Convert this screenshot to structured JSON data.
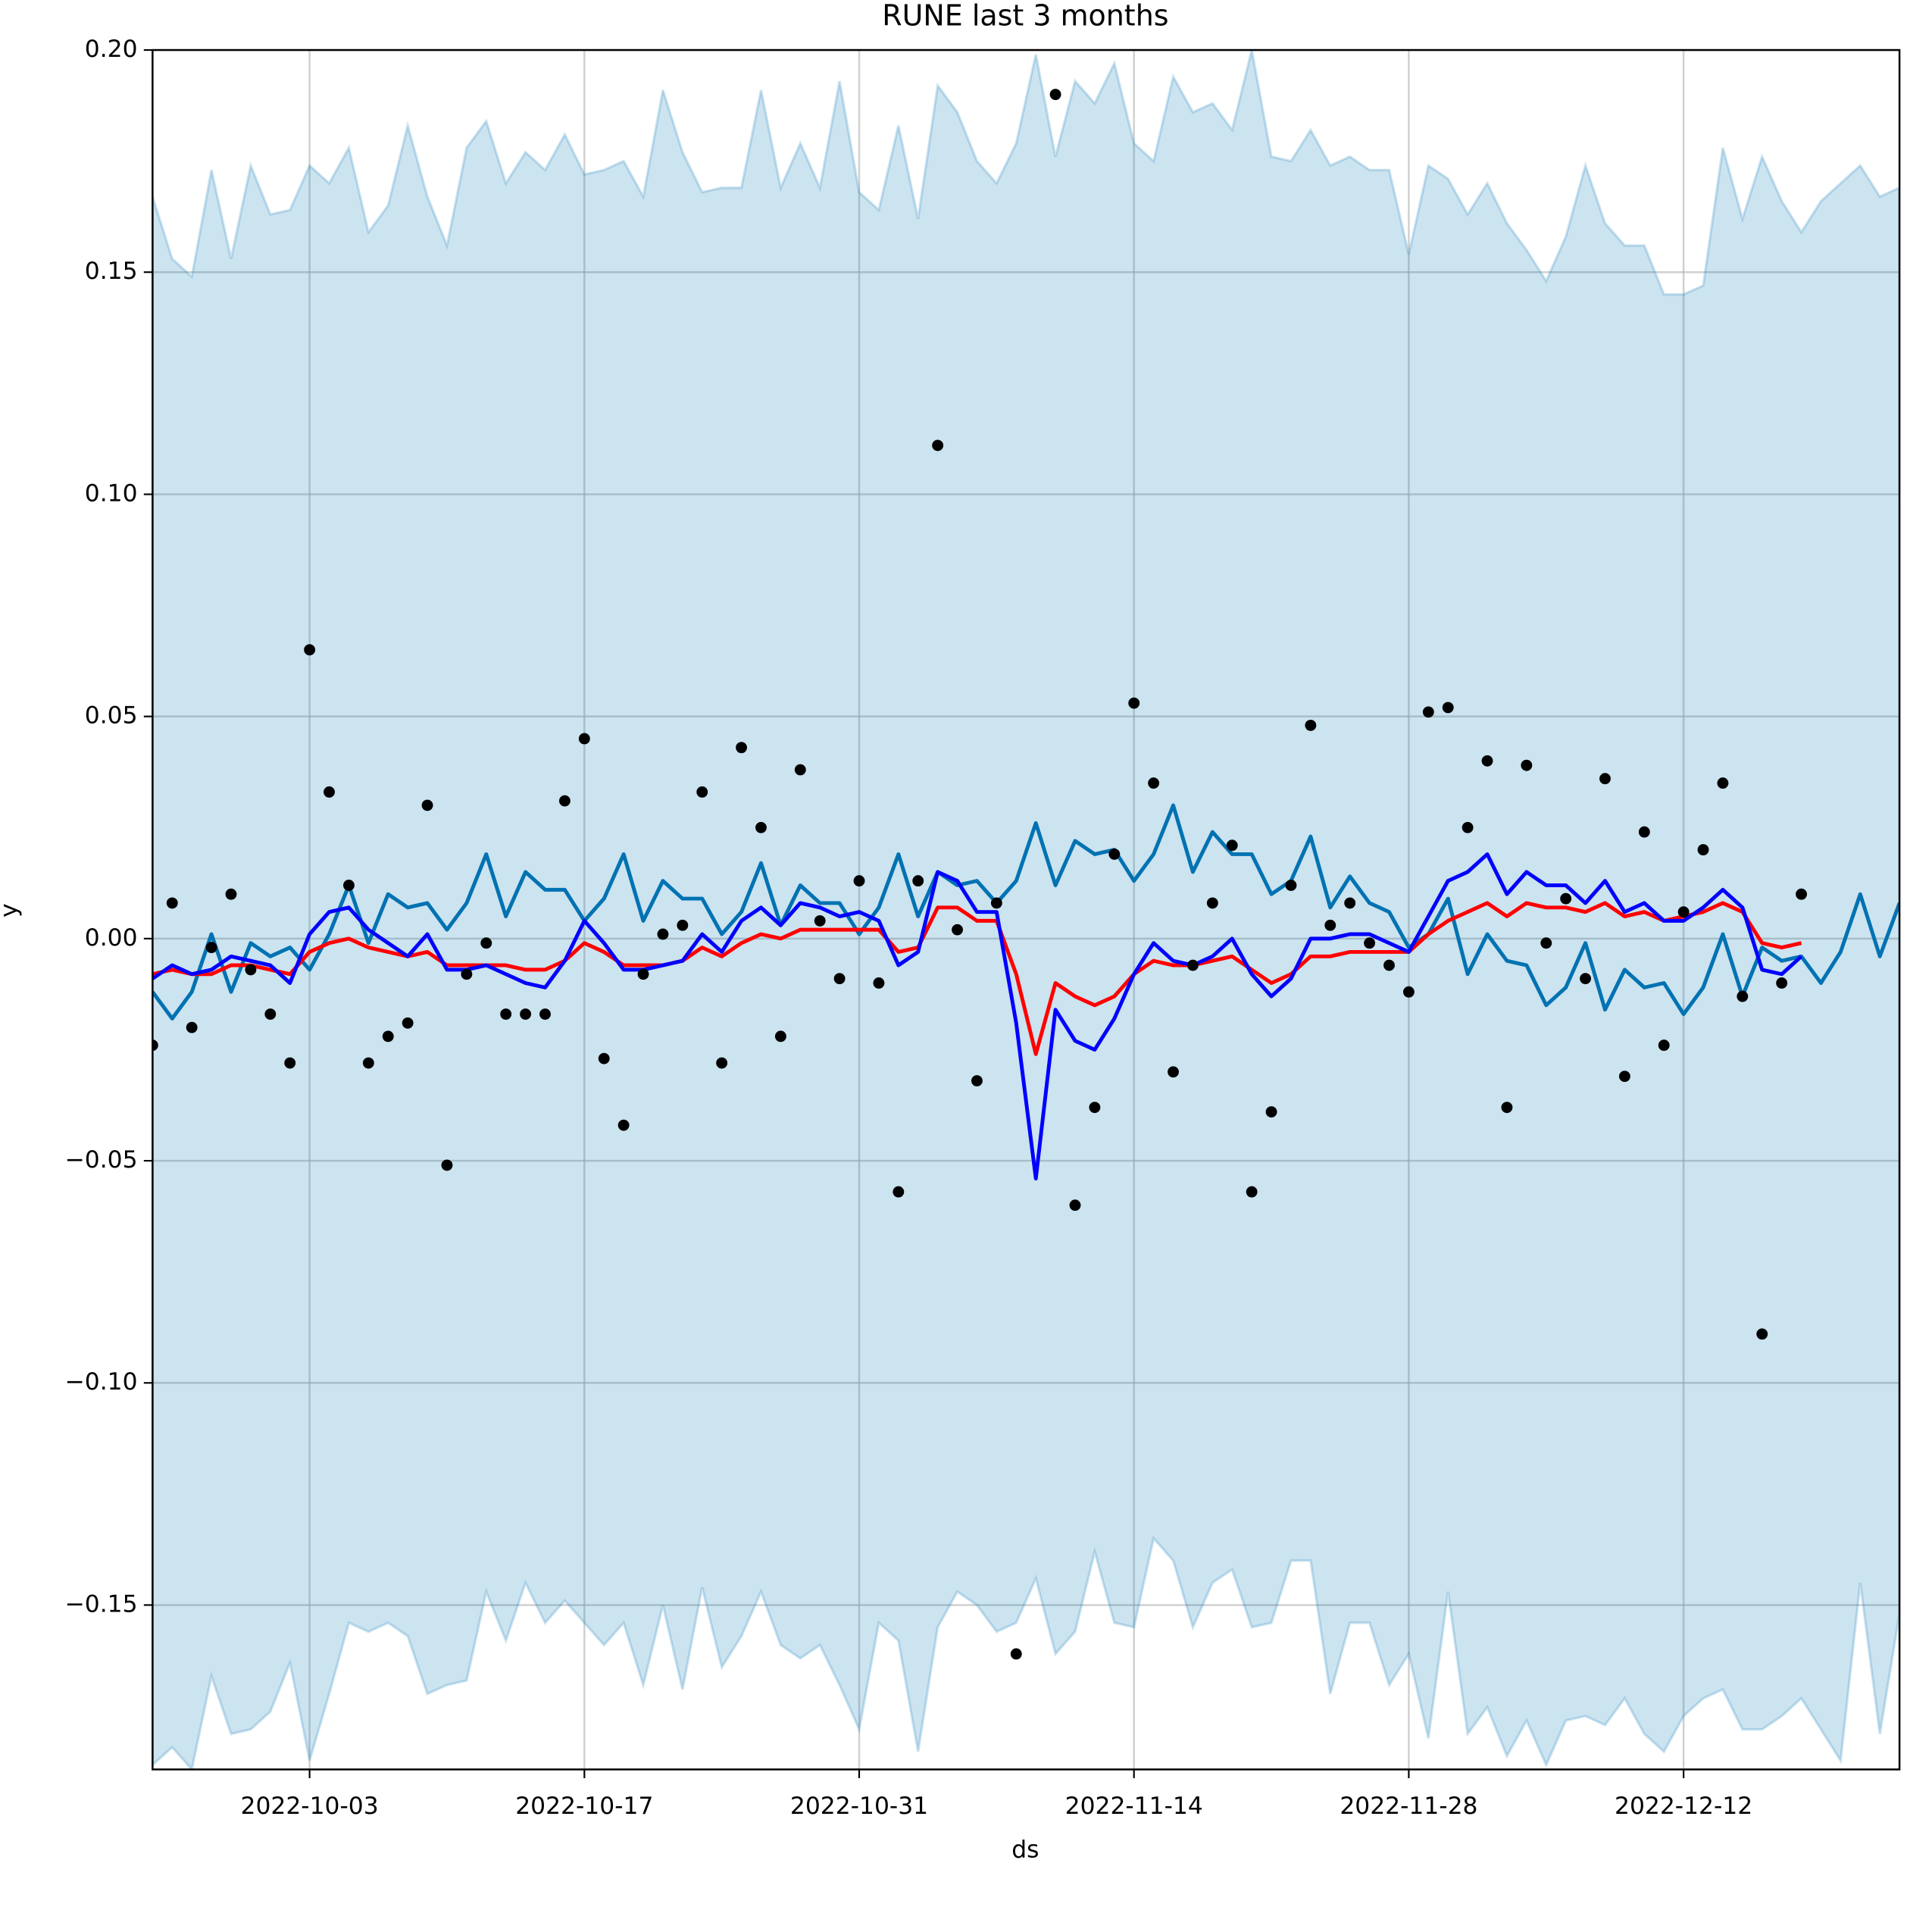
{
  "chart_data": {
    "type": "line",
    "title": "RUNE last 3 months",
    "x_label": "ds",
    "y_label": "y",
    "x": [
      "2022-09-25",
      "2022-09-26",
      "2022-09-27",
      "2022-09-28",
      "2022-09-29",
      "2022-09-30",
      "2022-10-01",
      "2022-10-02",
      "2022-10-03",
      "2022-10-04",
      "2022-10-05",
      "2022-10-06",
      "2022-10-07",
      "2022-10-08",
      "2022-10-09",
      "2022-10-10",
      "2022-10-11",
      "2022-10-12",
      "2022-10-13",
      "2022-10-14",
      "2022-10-15",
      "2022-10-16",
      "2022-10-17",
      "2022-10-18",
      "2022-10-19",
      "2022-10-20",
      "2022-10-21",
      "2022-10-22",
      "2022-10-23",
      "2022-10-24",
      "2022-10-25",
      "2022-10-26",
      "2022-10-27",
      "2022-10-28",
      "2022-10-29",
      "2022-10-30",
      "2022-10-31",
      "2022-11-01",
      "2022-11-02",
      "2022-11-03",
      "2022-11-04",
      "2022-11-05",
      "2022-11-06",
      "2022-11-07",
      "2022-11-08",
      "2022-11-09",
      "2022-11-10",
      "2022-11-11",
      "2022-11-12",
      "2022-11-13",
      "2022-11-14",
      "2022-11-15",
      "2022-11-16",
      "2022-11-17",
      "2022-11-18",
      "2022-11-19",
      "2022-11-20",
      "2022-11-21",
      "2022-11-22",
      "2022-11-23",
      "2022-11-24",
      "2022-11-25",
      "2022-11-26",
      "2022-11-27",
      "2022-11-28",
      "2022-11-29",
      "2022-11-30",
      "2022-12-01",
      "2022-12-02",
      "2022-12-03",
      "2022-12-04",
      "2022-12-05",
      "2022-12-06",
      "2022-12-07",
      "2022-12-08",
      "2022-12-09",
      "2022-12-10",
      "2022-12-11",
      "2022-12-12",
      "2022-12-13",
      "2022-12-14",
      "2022-12-15",
      "2022-12-16",
      "2022-12-17",
      "2022-12-18",
      "2022-12-19",
      "2022-12-20",
      "2022-12-21",
      "2022-12-22",
      "2022-12-23"
    ],
    "xlim": [
      "2022-09-25",
      "2022-12-23"
    ],
    "xticks": [
      "2022-10-03",
      "2022-10-17",
      "2022-10-31",
      "2022-11-14",
      "2022-11-28",
      "2022-12-12"
    ],
    "ylim": [
      -0.187,
      0.2
    ],
    "yticks": [
      {
        "value": -0.15,
        "label": "−0.15"
      },
      {
        "value": -0.1,
        "label": "−0.10"
      },
      {
        "value": -0.05,
        "label": "−0.05"
      },
      {
        "value": 0,
        "label": "0.00"
      },
      0.05,
      {
        "value": 0.1,
        "label": "0.10"
      },
      0.15,
      {
        "value": 0.2,
        "label": "0.20"
      }
    ],
    "grid": true,
    "series": [
      {
        "style": "band",
        "color": "#0072B2",
        "upper": [
          0.167,
          0.153,
          0.149,
          0.173,
          0.153,
          0.174,
          0.163,
          0.164,
          0.174,
          0.17,
          0.178,
          0.159,
          0.165,
          0.183,
          0.167,
          0.156,
          0.178,
          0.184,
          0.17,
          0.177,
          0.173,
          0.181,
          0.172,
          0.173,
          0.175,
          0.167,
          0.191,
          0.177,
          0.168,
          0.169,
          0.169,
          0.191,
          0.169,
          0.179,
          0.169,
          0.193,
          0.168,
          0.164,
          0.183,
          0.162,
          0.192,
          0.186,
          0.175,
          0.17,
          0.179,
          0.199,
          0.176,
          0.193,
          0.188,
          0.197,
          0.179,
          0.175,
          0.194,
          0.186,
          0.188,
          0.182,
          0.2,
          0.176,
          0.175,
          0.182,
          0.174,
          0.176,
          0.173,
          0.173,
          0.154,
          0.174,
          0.171,
          0.163,
          0.17,
          0.161,
          0.155,
          0.148,
          0.158,
          0.174,
          0.161,
          0.156,
          0.156,
          0.145,
          0.145,
          0.147,
          0.178,
          0.162,
          0.176,
          0.166,
          0.159,
          0.166,
          0.17,
          0.174,
          0.167,
          0.169
        ],
        "lower": [
          -0.186,
          -0.182,
          -0.187,
          -0.166,
          -0.179,
          -0.178,
          -0.174,
          -0.163,
          -0.185,
          -0.17,
          -0.154,
          -0.156,
          -0.154,
          -0.157,
          -0.17,
          -0.168,
          -0.167,
          -0.147,
          -0.158,
          -0.145,
          -0.154,
          -0.149,
          -0.154,
          -0.159,
          -0.154,
          -0.168,
          -0.15,
          -0.169,
          -0.146,
          -0.164,
          -0.157,
          -0.147,
          -0.159,
          -0.162,
          -0.159,
          -0.168,
          -0.178,
          -0.154,
          -0.158,
          -0.183,
          -0.155,
          -0.147,
          -0.15,
          -0.156,
          -0.154,
          -0.144,
          -0.161,
          -0.156,
          -0.138,
          -0.154,
          -0.155,
          -0.135,
          -0.14,
          -0.155,
          -0.145,
          -0.142,
          -0.155,
          -0.154,
          -0.14,
          -0.14,
          -0.17,
          -0.154,
          -0.154,
          -0.168,
          -0.161,
          -0.18,
          -0.147,
          -0.179,
          -0.173,
          -0.184,
          -0.176,
          -0.186,
          -0.176,
          -0.175,
          -0.177,
          -0.171,
          -0.179,
          -0.183,
          -0.175,
          -0.171,
          -0.169,
          -0.178,
          -0.178,
          -0.175,
          -0.171,
          -0.178,
          -0.185,
          -0.145,
          -0.179,
          -0.152
        ]
      },
      {
        "style": "line",
        "color": "#0072B2",
        "values": [
          -0.012,
          -0.018,
          -0.012,
          0.001,
          -0.012,
          -0.001,
          -0.004,
          -0.002,
          -0.007,
          0.001,
          0.012,
          -0.001,
          0.01,
          0.007,
          0.008,
          0.002,
          0.008,
          0.019,
          0.005,
          0.015,
          0.011,
          0.011,
          0.004,
          0.009,
          0.019,
          0.004,
          0.013,
          0.009,
          0.009,
          0.001,
          0.006,
          0.017,
          0.003,
          0.012,
          0.008,
          0.008,
          0.001,
          0.007,
          0.019,
          0.005,
          0.015,
          0.012,
          0.013,
          0.008,
          0.013,
          0.026,
          0.012,
          0.022,
          0.019,
          0.02,
          0.013,
          0.019,
          0.03,
          0.015,
          0.024,
          0.019,
          0.019,
          0.01,
          0.013,
          0.023,
          0.007,
          0.014,
          0.008,
          0.006,
          -0.002,
          0.001,
          0.009,
          -0.008,
          0.001,
          -0.005,
          -0.006,
          -0.015,
          -0.011,
          -0.001,
          -0.016,
          -0.007,
          -0.011,
          -0.01,
          -0.017,
          -0.011,
          0.001,
          -0.013,
          -0.002,
          -0.005,
          -0.004,
          -0.01,
          -0.003,
          0.01,
          -0.004,
          0.008
        ]
      },
      {
        "style": "line",
        "color": "#ff0000",
        "values": [
          -0.008,
          -0.007,
          -0.008,
          -0.008,
          -0.006,
          -0.006,
          -0.007,
          -0.008,
          -0.003,
          -0.001,
          0,
          -0.002,
          -0.003,
          -0.004,
          -0.003,
          -0.006,
          -0.006,
          -0.006,
          -0.006,
          -0.007,
          -0.007,
          -0.005,
          -0.001,
          -0.003,
          -0.006,
          -0.006,
          -0.006,
          -0.005,
          -0.002,
          -0.004,
          -0.001,
          0.001,
          0,
          0.002,
          0.002,
          0.002,
          0.002,
          0.002,
          -0.003,
          -0.002,
          0.007,
          0.007,
          0.004,
          0.004,
          -0.008,
          -0.026,
          -0.01,
          -0.013,
          -0.015,
          -0.013,
          -0.008,
          -0.005,
          -0.006,
          -0.006,
          -0.005,
          -0.004,
          -0.007,
          -0.01,
          -0.008,
          -0.004,
          -0.004,
          -0.003,
          -0.003,
          -0.003,
          -0.003,
          0.001,
          0.004,
          0.006,
          0.008,
          0.005,
          0.008,
          0.007,
          0.007,
          0.006,
          0.008,
          0.005,
          0.006,
          0.004,
          0.005,
          0.006,
          0.008,
          0.006,
          -0.001,
          -0.002,
          -0.001,
          null,
          null,
          null,
          null,
          null
        ]
      },
      {
        "style": "line",
        "color": "#0000ff",
        "values": [
          -0.009,
          -0.006,
          -0.008,
          -0.007,
          -0.004,
          -0.005,
          -0.006,
          -0.01,
          0.001,
          0.006,
          0.007,
          0.002,
          -0.001,
          -0.004,
          0.001,
          -0.007,
          -0.007,
          -0.006,
          -0.008,
          -0.01,
          -0.011,
          -0.005,
          0.004,
          -0.001,
          -0.007,
          -0.007,
          -0.006,
          -0.005,
          0.001,
          -0.003,
          0.004,
          0.007,
          0.003,
          0.008,
          0.007,
          0.005,
          0.006,
          0.004,
          -0.006,
          -0.003,
          0.015,
          0.013,
          0.006,
          0.006,
          -0.019,
          -0.054,
          -0.016,
          -0.023,
          -0.025,
          -0.018,
          -0.008,
          -0.001,
          -0.005,
          -0.006,
          -0.004,
          0,
          -0.008,
          -0.013,
          -0.009,
          0,
          0,
          0.001,
          0.001,
          -0.001,
          -0.003,
          0.005,
          0.013,
          0.015,
          0.019,
          0.01,
          0.015,
          0.012,
          0.012,
          0.008,
          0.013,
          0.006,
          0.008,
          0.004,
          0.004,
          0.007,
          0.011,
          0.007,
          -0.007,
          -0.008,
          -0.004,
          null,
          null,
          null,
          null,
          null
        ]
      },
      {
        "style": "scatter",
        "color": "#000000",
        "values": [
          -0.024,
          0.008,
          -0.02,
          -0.002,
          0.01,
          -0.007,
          -0.017,
          -0.028,
          0.065,
          0.033,
          0.012,
          -0.028,
          -0.022,
          -0.019,
          0.03,
          -0.051,
          -0.008,
          -0.001,
          -0.017,
          -0.017,
          -0.017,
          0.031,
          0.045,
          -0.027,
          -0.042,
          -0.008,
          0.001,
          0.003,
          0.033,
          -0.028,
          0.043,
          0.025,
          -0.022,
          0.038,
          0.004,
          -0.009,
          0.013,
          -0.01,
          -0.057,
          0.013,
          0.111,
          0.002,
          -0.032,
          0.008,
          -0.161,
          null,
          0.19,
          -0.06,
          -0.038,
          0.019,
          0.053,
          0.035,
          -0.03,
          -0.006,
          0.008,
          0.021,
          -0.057,
          -0.039,
          0.012,
          0.048,
          0.003,
          0.008,
          -0.001,
          -0.006,
          -0.012,
          0.051,
          0.052,
          0.025,
          0.04,
          -0.038,
          0.039,
          -0.001,
          0.009,
          -0.009,
          0.036,
          -0.031,
          0.024,
          -0.024,
          0.006,
          0.02,
          0.035,
          -0.013,
          -0.089,
          -0.01,
          0.01,
          null,
          null,
          null,
          null,
          null
        ]
      }
    ]
  }
}
